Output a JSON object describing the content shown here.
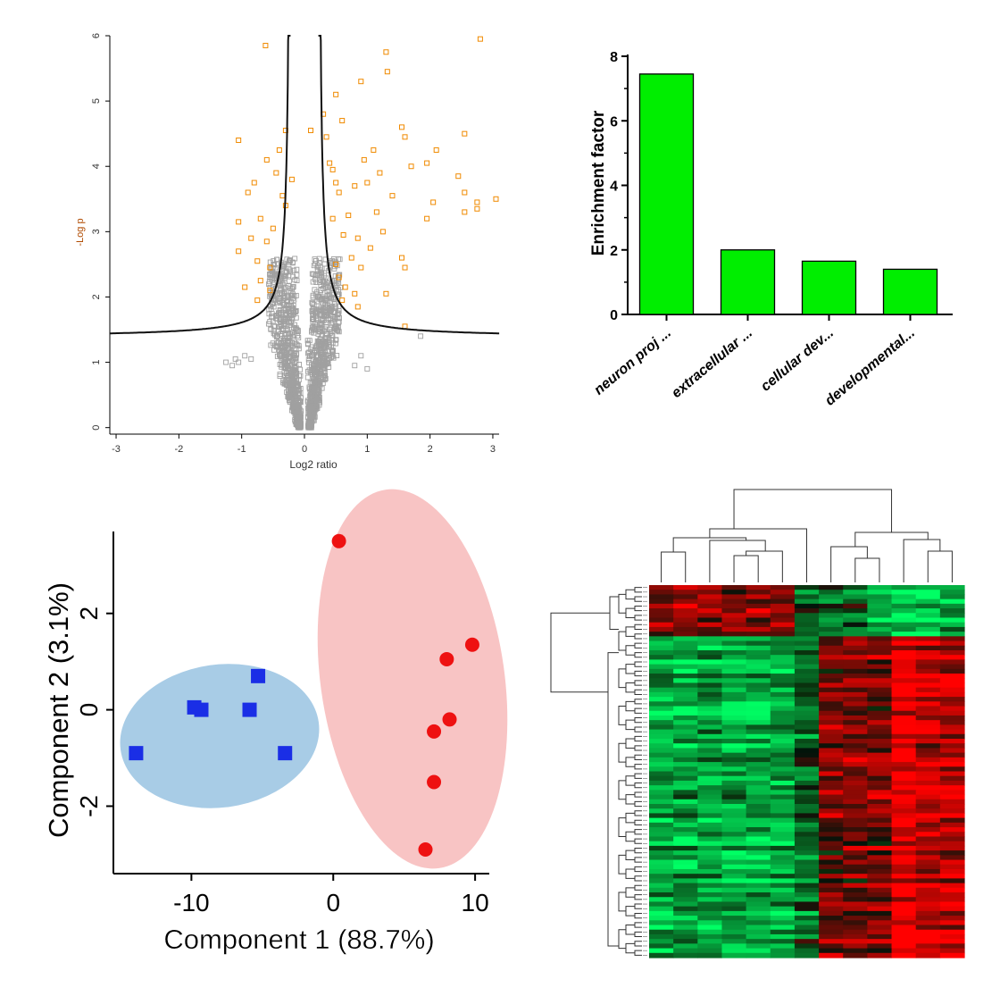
{
  "chart_data": [
    {
      "panel": "volcano",
      "type": "scatter",
      "xlabel": "Log2 ratio",
      "ylabel": "-Log p",
      "xlim": [
        -3.1,
        3.1
      ],
      "ylim": [
        -0.1,
        6.0
      ],
      "xticks": [
        "-3",
        "-2",
        "-1",
        "0",
        "1",
        "2",
        "3"
      ],
      "yticks": [
        "0",
        "1",
        "2",
        "3",
        "4",
        "5",
        "6"
      ],
      "threshold_curve": {
        "asymptote_x": 0.22,
        "floor_y": 1.38,
        "scale": 0.18
      },
      "series": [
        {
          "color": "#f08a00",
          "marker": "open-square",
          "points": [
            [
              -0.62,
              5.85
            ],
            [
              2.8,
              5.95
            ],
            [
              1.3,
              5.75
            ],
            [
              1.32,
              5.45
            ],
            [
              0.9,
              5.3
            ],
            [
              0.5,
              5.1
            ],
            [
              0.3,
              4.8
            ],
            [
              0.6,
              4.7
            ],
            [
              1.55,
              4.6
            ],
            [
              1.6,
              4.45
            ],
            [
              2.55,
              4.5
            ],
            [
              1.1,
              4.25
            ],
            [
              2.1,
              4.25
            ],
            [
              1.95,
              4.05
            ],
            [
              1.7,
              4.0
            ],
            [
              0.4,
              4.05
            ],
            [
              -1.05,
              4.4
            ],
            [
              -0.6,
              4.1
            ],
            [
              -0.45,
              3.9
            ],
            [
              2.45,
              3.85
            ],
            [
              1.0,
              3.75
            ],
            [
              0.8,
              3.7
            ],
            [
              0.55,
              3.6
            ],
            [
              -0.8,
              3.75
            ],
            [
              -0.9,
              3.6
            ],
            [
              -0.35,
              3.55
            ],
            [
              1.4,
              3.55
            ],
            [
              2.55,
              3.6
            ],
            [
              2.75,
              3.45
            ],
            [
              3.05,
              3.5
            ],
            [
              2.05,
              3.45
            ],
            [
              1.15,
              3.3
            ],
            [
              0.7,
              3.25
            ],
            [
              0.45,
              3.2
            ],
            [
              -1.05,
              3.15
            ],
            [
              -0.7,
              3.2
            ],
            [
              -0.5,
              3.05
            ],
            [
              2.55,
              3.3
            ],
            [
              2.75,
              3.35
            ],
            [
              1.95,
              3.2
            ],
            [
              1.25,
              3.0
            ],
            [
              0.85,
              2.9
            ],
            [
              0.62,
              2.95
            ],
            [
              -0.85,
              2.9
            ],
            [
              -0.6,
              2.85
            ],
            [
              -1.05,
              2.7
            ],
            [
              1.05,
              2.75
            ],
            [
              0.75,
              2.6
            ],
            [
              0.5,
              2.5
            ],
            [
              -0.75,
              2.55
            ],
            [
              -0.55,
              2.45
            ],
            [
              1.55,
              2.6
            ],
            [
              1.6,
              2.45
            ],
            [
              0.9,
              2.45
            ],
            [
              0.55,
              2.3
            ],
            [
              -0.7,
              2.25
            ],
            [
              -0.95,
              2.15
            ],
            [
              0.65,
              2.15
            ],
            [
              0.8,
              2.05
            ],
            [
              -0.55,
              2.1
            ],
            [
              1.3,
              2.05
            ],
            [
              0.6,
              1.95
            ],
            [
              -0.75,
              1.95
            ],
            [
              0.85,
              1.85
            ],
            [
              1.6,
              1.55
            ],
            [
              -0.3,
              4.55
            ],
            [
              0.1,
              4.55
            ],
            [
              0.35,
              4.45
            ],
            [
              -0.4,
              4.25
            ],
            [
              0.45,
              3.95
            ],
            [
              -0.3,
              3.4
            ],
            [
              0.5,
              3.75
            ],
            [
              0.95,
              4.1
            ],
            [
              1.2,
              3.9
            ],
            [
              -0.2,
              3.8
            ]
          ]
        },
        {
          "color": "#a0a0a0",
          "marker": "open-square",
          "count": 1400,
          "shape": "funnel centred at x=0, spread widening with -Log p up to the threshold curve",
          "outliers": [
            [
              -1.25,
              1.0
            ],
            [
              -1.15,
              0.95
            ],
            [
              -1.05,
              1.0
            ],
            [
              -0.95,
              1.1
            ],
            [
              -0.85,
              1.05
            ],
            [
              1.0,
              0.9
            ],
            [
              0.9,
              1.1
            ],
            [
              1.85,
              1.4
            ],
            [
              0.8,
              0.95
            ],
            [
              -1.1,
              1.05
            ]
          ]
        }
      ]
    },
    {
      "panel": "enrichment",
      "type": "bar",
      "categories": [
        "neuron proj ...",
        "extracellular ...",
        "cellular dev...",
        "developmental..."
      ],
      "values": [
        7.45,
        2.0,
        1.65,
        1.4
      ],
      "ylabel": "Enrichment factor",
      "ylim": [
        0,
        8
      ],
      "yticks": [
        "0",
        "2",
        "4",
        "6",
        "8"
      ],
      "bar_color": "#00ee00"
    },
    {
      "panel": "pca",
      "type": "scatter",
      "xlabel": "Component 1 (88.7%)",
      "ylabel": "Component 2 (3.1%)",
      "xlim": [
        -15.5,
        11
      ],
      "ylim": [
        -3.4,
        3.7
      ],
      "xticks": [
        "-10",
        "0",
        "10"
      ],
      "yticks": [
        "-2",
        "0",
        "2"
      ],
      "series": [
        {
          "color": "#1a2ee6",
          "marker": "square",
          "ellipse_color": "#a8cce6",
          "points": [
            [
              -5.3,
              0.7
            ],
            [
              -9.8,
              0.05
            ],
            [
              -9.3,
              0.0
            ],
            [
              -5.9,
              0.0
            ],
            [
              -13.9,
              -0.9
            ],
            [
              -3.4,
              -0.9
            ]
          ]
        },
        {
          "color": "#ee1111",
          "marker": "circle",
          "ellipse_color": "#f8c4c4",
          "points": [
            [
              0.4,
              3.5
            ],
            [
              9.8,
              1.35
            ],
            [
              8.0,
              1.05
            ],
            [
              8.2,
              -0.2
            ],
            [
              7.1,
              -0.45
            ],
            [
              7.1,
              -1.5
            ],
            [
              6.5,
              -2.9
            ]
          ]
        }
      ]
    },
    {
      "panel": "heatmap",
      "type": "heatmap",
      "columns": 13,
      "rows": 80,
      "upper_block_rows": 11,
      "column_groups": [
        [
          0,
          1,
          2,
          3,
          4,
          5,
          6
        ],
        [
          7,
          8,
          9,
          10,
          11,
          12
        ]
      ],
      "colors": {
        "high": "#ff0000",
        "mid": "#000000",
        "low": "#00ff66"
      }
    }
  ]
}
